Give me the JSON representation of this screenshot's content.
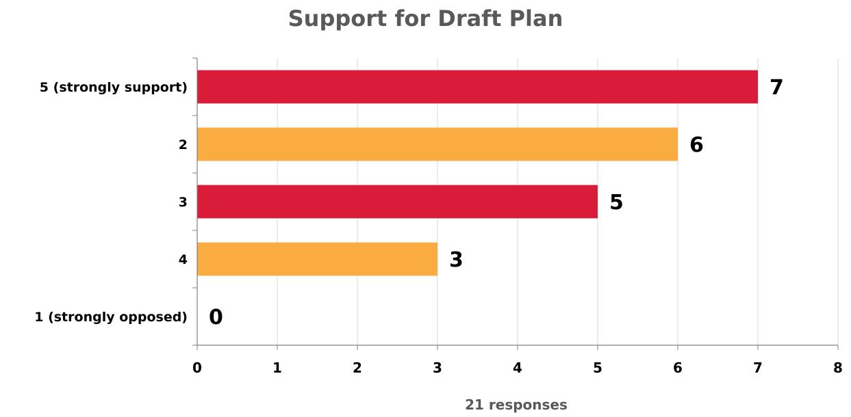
{
  "chart_data": {
    "type": "bar",
    "orientation": "horizontal",
    "title": "Support for Draft Plan",
    "xlabel": "21 responses",
    "ylabel": "",
    "categories": [
      "5 (strongly support)",
      "2",
      "3",
      "4",
      "1 (strongly opposed)"
    ],
    "values": [
      7,
      6,
      5,
      3,
      0
    ],
    "colors": [
      "#d91c3a",
      "#fbac40",
      "#d91c3a",
      "#fbac40",
      "#d91c3a"
    ],
    "xlim": [
      0,
      8
    ],
    "xticks": [
      "0",
      "1",
      "2",
      "3",
      "4",
      "5",
      "6",
      "7",
      "8"
    ],
    "grid": true,
    "legend": "none"
  }
}
